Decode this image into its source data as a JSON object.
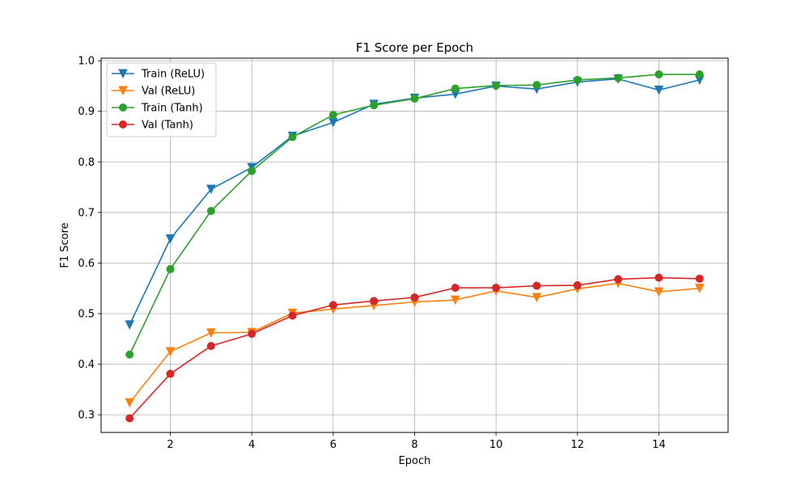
{
  "chart_data": {
    "type": "line",
    "title": "F1 Score per Epoch",
    "xlabel": "Epoch",
    "ylabel": "F1 Score",
    "xlim": [
      0.3,
      15.7
    ],
    "ylim": [
      0.265,
      1.005
    ],
    "xticks": [
      2,
      4,
      6,
      8,
      10,
      12,
      14
    ],
    "yticks": [
      0.3,
      0.4,
      0.5,
      0.6,
      0.7,
      0.8,
      0.9,
      1.0
    ],
    "grid": true,
    "legend_position": "top-left",
    "x": [
      1,
      2,
      3,
      4,
      5,
      6,
      7,
      8,
      9,
      10,
      11,
      12,
      13,
      14,
      15
    ],
    "series": [
      {
        "name": "Train (ReLU)",
        "color": "#1f77b4",
        "marker": "triangle-down",
        "values": [
          0.478,
          0.648,
          0.746,
          0.789,
          0.851,
          0.878,
          0.914,
          0.926,
          0.934,
          0.95,
          0.944,
          0.958,
          0.964,
          0.942,
          0.962
        ]
      },
      {
        "name": "Val (ReLU)",
        "color": "#ff7f0e",
        "marker": "triangle-down",
        "values": [
          0.324,
          0.425,
          0.462,
          0.463,
          0.501,
          0.509,
          0.516,
          0.523,
          0.527,
          0.545,
          0.532,
          0.549,
          0.56,
          0.543,
          0.55
        ]
      },
      {
        "name": "Train (Tanh)",
        "color": "#2ca02c",
        "marker": "circle",
        "values": [
          0.419,
          0.588,
          0.703,
          0.782,
          0.849,
          0.893,
          0.912,
          0.925,
          0.945,
          0.951,
          0.952,
          0.962,
          0.966,
          0.973,
          0.973
        ]
      },
      {
        "name": "Val (Tanh)",
        "color": "#d62728",
        "marker": "circle",
        "values": [
          0.293,
          0.381,
          0.436,
          0.46,
          0.496,
          0.517,
          0.525,
          0.532,
          0.551,
          0.551,
          0.555,
          0.556,
          0.568,
          0.571,
          0.569
        ]
      }
    ]
  }
}
